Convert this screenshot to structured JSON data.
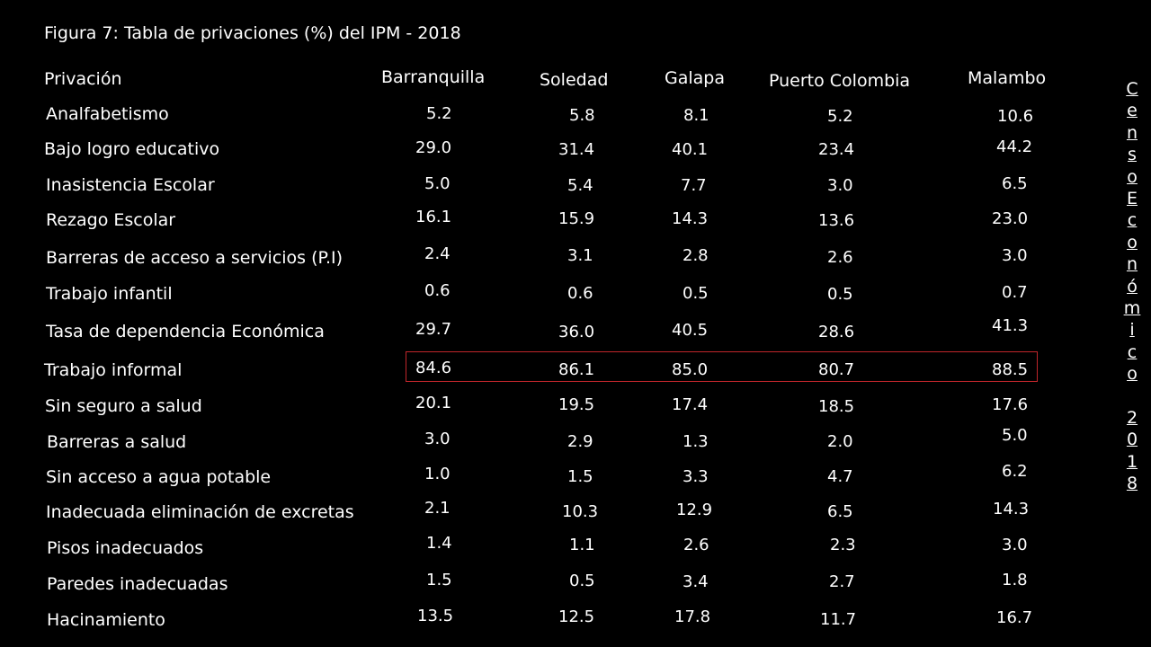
{
  "title": "Figura 7: Tabla de privaciones (%) del IPM - 2018",
  "table": {
    "headers": {
      "label": "Privación",
      "barranquilla": "Barranquilla",
      "soledad": "Soledad",
      "galapa": "Galapa",
      "puerto_colombia": "Puerto Colombia",
      "malambo": "Malambo"
    },
    "rows": [
      {
        "label": "Analfabetismo",
        "barranquilla": "5.2",
        "soledad": "5.8",
        "galapa": "8.1",
        "puerto_colombia": "5.2",
        "malambo": "10.6"
      },
      {
        "label": "Bajo logro educativo",
        "barranquilla": "29.0",
        "soledad": "31.4",
        "galapa": "40.1",
        "puerto_colombia": "23.4",
        "malambo": "44.2"
      },
      {
        "label": "Inasistencia Escolar",
        "barranquilla": "5.0",
        "soledad": "5.4",
        "galapa": "7.7",
        "puerto_colombia": "3.0",
        "malambo": "6.5"
      },
      {
        "label": "Rezago Escolar",
        "barranquilla": "16.1",
        "soledad": "15.9",
        "galapa": "14.3",
        "puerto_colombia": "13.6",
        "malambo": "23.0"
      },
      {
        "label": "Barreras de acceso a servicios (P.I)",
        "barranquilla": "2.4",
        "soledad": "3.1",
        "galapa": "2.8",
        "puerto_colombia": "2.6",
        "malambo": "3.0"
      },
      {
        "label": "Trabajo infantil",
        "barranquilla": "0.6",
        "soledad": "0.6",
        "galapa": "0.5",
        "puerto_colombia": "0.5",
        "malambo": "0.7"
      },
      {
        "label": "Tasa de dependencia Económica",
        "barranquilla": "29.7",
        "soledad": "36.0",
        "galapa": "40.5",
        "puerto_colombia": "28.6",
        "malambo": "41.3"
      },
      {
        "label": "Trabajo informal",
        "barranquilla": "84.6",
        "soledad": "86.1",
        "galapa": "85.0",
        "puerto_colombia": "80.7",
        "malambo": "88.5"
      },
      {
        "label": "Sin seguro a salud",
        "barranquilla": "20.1",
        "soledad": "19.5",
        "galapa": "17.4",
        "puerto_colombia": "18.5",
        "malambo": "17.6"
      },
      {
        "label": "Barreras a salud",
        "barranquilla": "3.0",
        "soledad": "2.9",
        "galapa": "1.3",
        "puerto_colombia": "2.0",
        "malambo": "5.0"
      },
      {
        "label": "Sin acceso a agua potable",
        "barranquilla": "1.0",
        "soledad": "1.5",
        "galapa": "3.3",
        "puerto_colombia": "4.7",
        "malambo": "6.2"
      },
      {
        "label": "Inadecuada eliminación de excretas",
        "barranquilla": "2.1",
        "soledad": "10.3",
        "galapa": "12.9",
        "puerto_colombia": "6.5",
        "malambo": "14.3"
      },
      {
        "label": "Pisos inadecuados",
        "barranquilla": "1.4",
        "soledad": "1.1",
        "galapa": "2.6",
        "puerto_colombia": "2.3",
        "malambo": "3.0"
      },
      {
        "label": "Paredes inadecuadas",
        "barranquilla": "1.5",
        "soledad": "0.5",
        "galapa": "3.4",
        "puerto_colombia": "2.7",
        "malambo": "1.8"
      },
      {
        "label": "Hacinamiento",
        "barranquilla": "13.5",
        "soledad": "12.5",
        "galapa": "17.8",
        "puerto_colombia": "11.7",
        "malambo": "16.7"
      }
    ]
  },
  "source_vertical": [
    "C",
    "e",
    "n",
    "s",
    "o",
    "E",
    "c",
    "o",
    "n",
    "ó",
    "m",
    "i",
    "c",
    "o",
    " ",
    "2",
    "0",
    "1",
    "8"
  ],
  "colors": {
    "background": "#000000",
    "text": "#ffffff",
    "highlight_border": "#c0262b"
  }
}
